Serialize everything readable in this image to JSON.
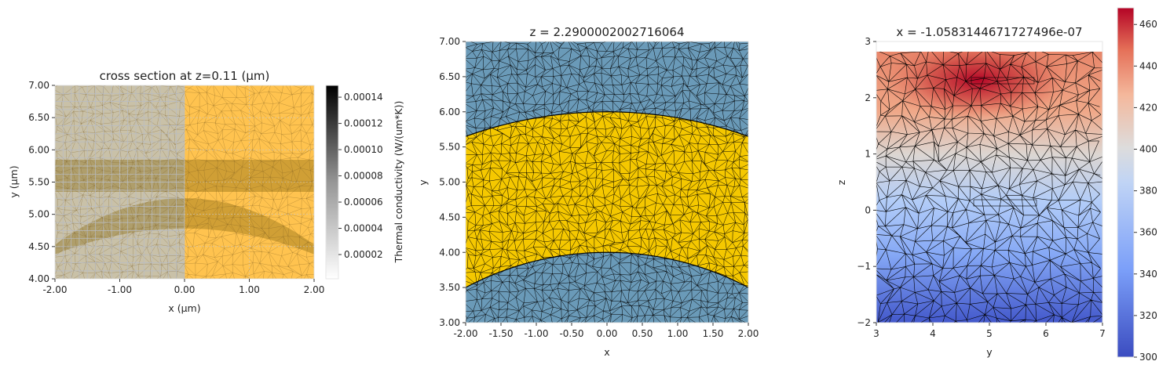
{
  "chart_data": [
    {
      "type": "heatmap",
      "title": "cross section at z=0.11 (µm)",
      "xlabel": "x (µm)",
      "ylabel": "y (µm)",
      "xlim": [
        -2,
        2
      ],
      "ylim": [
        4,
        7
      ],
      "xticks": [
        "-2.00",
        "-1.00",
        "0.00",
        "1.00",
        "2.00"
      ],
      "yticks": [
        "4.00",
        "4.50",
        "5.00",
        "5.50",
        "6.00",
        "6.50",
        "7.00"
      ],
      "grid": true,
      "colorbar": {
        "label": "Thermal conductivity (W/(um*K))",
        "colormap": "Greys",
        "ticks": [
          "0.00002",
          "0.00004",
          "0.00006",
          "0.00008",
          "0.00010",
          "0.00012",
          "0.00014"
        ],
        "range": [
          1.5e-06,
          0.000149
        ]
      },
      "colors": {
        "left_region": "#c9c1a8",
        "right_region": "#ffc34f",
        "band_overlay": "#8a6a10"
      }
    },
    {
      "type": "heatmap",
      "title": "z = 2.2900002002716064",
      "xlabel": "x",
      "ylabel": "y",
      "xlim": [
        -2,
        2
      ],
      "ylim": [
        3,
        7
      ],
      "xticks": [
        "-2.00",
        "-1.50",
        "-1.00",
        "-0.50",
        "0.00",
        "0.50",
        "1.00",
        "1.50",
        "2.00"
      ],
      "yticks": [
        "3.00",
        "3.50",
        "4.00",
        "4.50",
        "5.00",
        "5.50",
        "6.00",
        "6.50",
        "7.00"
      ],
      "colors": {
        "background_region": "#6a9ab8",
        "ring_region": "#f5c800"
      },
      "ring_outer_y_at_x0": 6.0,
      "ring_outer_y_at_edges": 5.65,
      "ring_inner_y_at_x0": 4.0,
      "ring_inner_y_at_edges": 3.5
    },
    {
      "type": "heatmap",
      "title": "x = -1.0583144671727496e-07",
      "xlabel": "y",
      "ylabel": "z",
      "xlim": [
        3,
        7
      ],
      "ylim": [
        -2,
        3
      ],
      "data_top_z": 2.8,
      "hotspot": {
        "y": 4.8,
        "z": 2.3
      },
      "xticks": [
        "3",
        "4",
        "5",
        "6",
        "7"
      ],
      "yticks": [
        "−2",
        "−1",
        "0",
        "1",
        "2",
        "3"
      ],
      "colorbar": {
        "colormap": "coolwarm",
        "ticks": [
          "300",
          "320",
          "340",
          "360",
          "380",
          "400",
          "420",
          "440",
          "460"
        ],
        "range": [
          300,
          468
        ]
      }
    }
  ]
}
